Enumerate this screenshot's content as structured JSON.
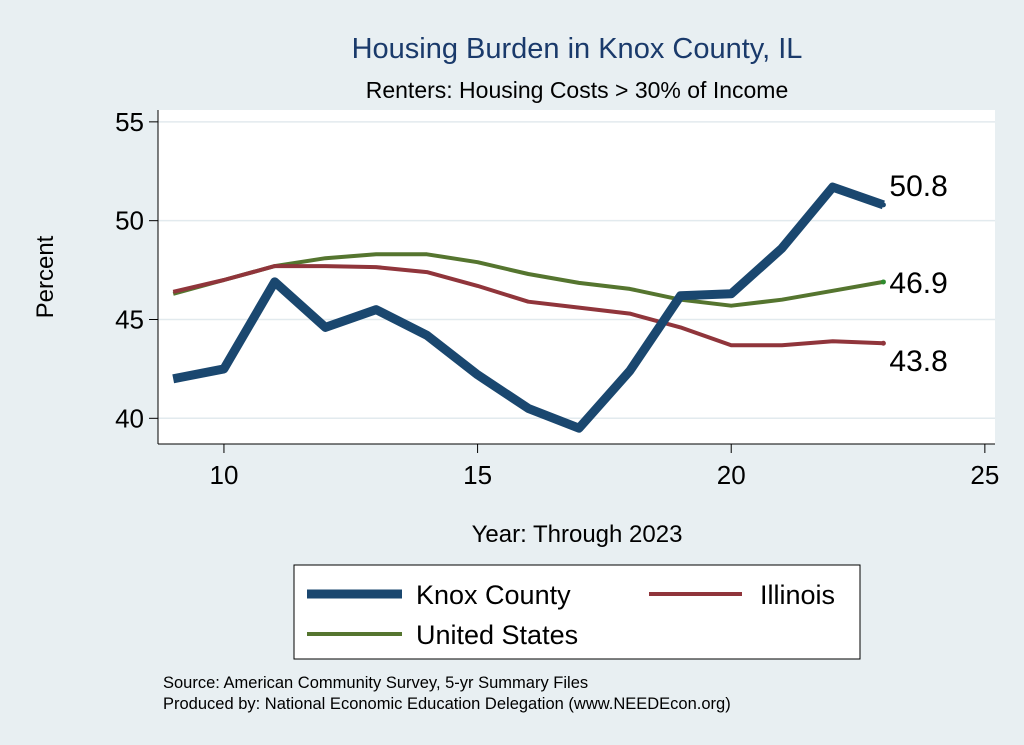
{
  "chart_data": {
    "type": "line",
    "title": "Housing Burden in Knox County, IL",
    "subtitle": "Renters: Housing Costs > 30% of Income",
    "xlabel": "Year: Through 2023",
    "ylabel": "Percent",
    "xlim": [
      8.7,
      25.2
    ],
    "ylim": [
      38.7,
      55.6
    ],
    "xticks": [
      10,
      15,
      20,
      25
    ],
    "yticks": [
      40,
      45,
      50,
      55
    ],
    "grid": true,
    "legend_position": "bottom",
    "series": [
      {
        "name": "Knox County",
        "color": "#1a476f",
        "x": [
          9,
          10,
          11,
          12,
          13,
          14,
          15,
          16,
          17,
          18,
          19,
          20,
          21,
          22,
          23
        ],
        "y": [
          42.0,
          42.5,
          46.9,
          44.6,
          45.5,
          44.2,
          42.2,
          40.5,
          39.5,
          42.4,
          46.2,
          46.3,
          48.6,
          51.7,
          50.8
        ],
        "end_label": "50.8"
      },
      {
        "name": "Illinois",
        "color": "#90353b",
        "x": [
          9,
          10,
          11,
          12,
          13,
          14,
          15,
          16,
          17,
          18,
          19,
          20,
          21,
          22,
          23
        ],
        "y": [
          46.4,
          47.0,
          47.7,
          47.7,
          47.65,
          47.4,
          46.7,
          45.9,
          45.6,
          45.3,
          44.6,
          43.7,
          43.7,
          43.9,
          43.8
        ],
        "end_label": "43.8"
      },
      {
        "name": "United States",
        "color": "#55752f",
        "x": [
          9,
          10,
          11,
          12,
          13,
          14,
          15,
          16,
          17,
          18,
          19,
          20,
          21,
          22,
          23
        ],
        "y": [
          46.3,
          47.0,
          47.7,
          48.1,
          48.3,
          48.3,
          47.9,
          47.3,
          46.85,
          46.55,
          46.0,
          45.7,
          46.0,
          46.45,
          46.9
        ],
        "end_label": "46.9"
      }
    ]
  },
  "source": {
    "line1": "Source: American Community Survey, 5-yr Summary Files",
    "line2": "Produced by: National Economic Education Delegation (www.NEEDEcon.org)"
  }
}
